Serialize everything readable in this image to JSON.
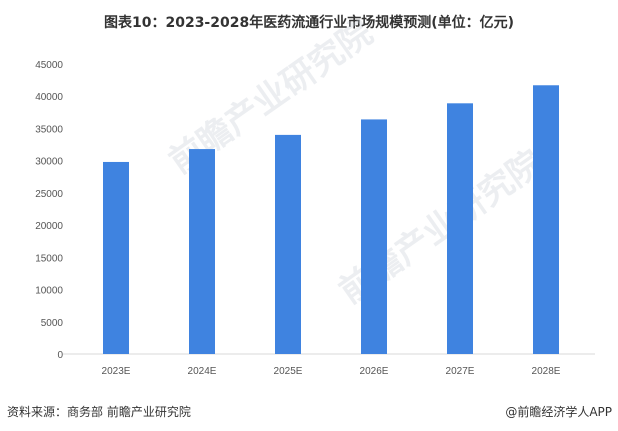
{
  "chart_data": {
    "type": "bar",
    "title": "图表10：2023-2028年医药流通行业市场规模预测(单位：亿元)",
    "categories": [
      "2023E",
      "2024E",
      "2025E",
      "2026E",
      "2027E",
      "2028E"
    ],
    "values": [
      29800,
      31800,
      34000,
      36400,
      38900,
      41700
    ],
    "yticks": [
      0,
      5000,
      10000,
      15000,
      20000,
      25000,
      30000,
      35000,
      40000,
      45000
    ],
    "ylim": [
      0,
      45000
    ],
    "xlabel": "",
    "ylabel": "",
    "grid": false,
    "bar_color": "#3F83E0"
  },
  "footer": {
    "source": "资料来源：商务部 前瞻产业研究院",
    "credit": "@前瞻经济学人APP"
  }
}
